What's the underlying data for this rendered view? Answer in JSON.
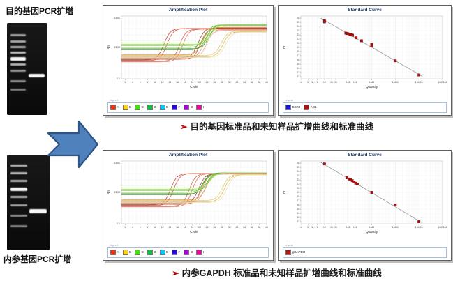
{
  "page": {
    "background": "#ffffff"
  },
  "gels": {
    "top": {
      "label": "目的基因PCR扩增",
      "bands": [
        {
          "t": 12,
          "o": 0.7
        },
        {
          "t": 19,
          "o": 0.75
        },
        {
          "t": 25,
          "o": 0.8
        },
        {
          "t": 31,
          "o": 0.85
        },
        {
          "t": 37,
          "o": 1.0,
          "thick": true
        },
        {
          "t": 44,
          "o": 0.8
        },
        {
          "t": 51,
          "o": 0.65
        },
        {
          "t": 62,
          "o": 0.6
        },
        {
          "t": 71,
          "o": 0.55
        }
      ],
      "sample_band": {
        "t": 55,
        "thick": false
      }
    },
    "bottom": {
      "label": "内参基因PCR扩增",
      "bands": [
        {
          "t": 10,
          "o": 0.8
        },
        {
          "t": 18,
          "o": 0.8
        },
        {
          "t": 26,
          "o": 0.8
        },
        {
          "t": 34,
          "o": 1.0,
          "thick": true
        },
        {
          "t": 43,
          "o": 0.8
        },
        {
          "t": 52,
          "o": 0.7
        },
        {
          "t": 63,
          "o": 0.6
        },
        {
          "t": 74,
          "o": 0.55
        }
      ],
      "sample_band": {
        "t": 57,
        "thick": true
      }
    }
  },
  "arrow": {
    "fill": "#4f81bd",
    "stroke": "#2d5686",
    "direction": "right"
  },
  "captions": {
    "top": {
      "bullet": "➢",
      "bullet_color": "#c00000",
      "text": "目的基因标准品和未知样品扩增曲线和标准曲线"
    },
    "bottom": {
      "bullet": "➢",
      "bullet_color": "#c00000",
      "text": "内参GAPDH 标准品和未知样品扩增曲线和标准曲线"
    }
  },
  "chart_data": [
    {
      "type": "line",
      "title": "Amplification Plot",
      "xlabel": "Cycle",
      "ylabel": "Rn",
      "yscale": "log",
      "xlim": [
        1,
        40
      ],
      "x_ticks": [
        2,
        4,
        6,
        8,
        10,
        12,
        14,
        16,
        18,
        20,
        22,
        24,
        26,
        28,
        30,
        32,
        34,
        36,
        38,
        40
      ],
      "y_ticks": [
        "1E01",
        "1E00",
        "0.1"
      ],
      "grid": true,
      "legend_title": "Legend",
      "legend": [
        {
          "label": "A",
          "color": "#ff2a00"
        },
        {
          "label": "B",
          "color": "#ffd500"
        },
        {
          "label": "C",
          "color": "#3ae800"
        },
        {
          "label": "D",
          "color": "#00c43a"
        },
        {
          "label": "E",
          "color": "#00c8ff"
        },
        {
          "label": "F",
          "color": "#2a00ff"
        },
        {
          "label": "G",
          "color": "#a800e0"
        },
        {
          "label": "H",
          "color": "#ff00a0"
        }
      ],
      "series": [
        {
          "color": "#b03a2e",
          "ct": 12.4,
          "base": 0.3,
          "plateau": 0.8
        },
        {
          "color": "#cd4a3a",
          "ct": 13.2,
          "base": 0.29,
          "plateau": 0.8
        },
        {
          "color": "#d45b43",
          "ct": 16.6,
          "base": 0.28,
          "plateau": 0.79
        },
        {
          "color": "#e06a50",
          "ct": 17.4,
          "base": 0.27,
          "plateau": 0.79
        },
        {
          "color": "#8e3b2a",
          "ct": 21.6,
          "base": 0.33,
          "plateau": 0.81
        },
        {
          "color": "#c0502f",
          "ct": 22.2,
          "base": 0.31,
          "plateau": 0.8
        },
        {
          "color": "#d98a2b",
          "ct": 22.7,
          "base": 0.38,
          "plateau": 0.82
        },
        {
          "color": "#e2907d",
          "ct": 23.2,
          "base": 0.34,
          "plateau": 0.78
        },
        {
          "color": "#eaa592",
          "ct": 23.8,
          "base": 0.33,
          "plateau": 0.77
        },
        {
          "color": "#35982a",
          "ct": 23.8,
          "base": 0.46,
          "plateau": 0.85
        },
        {
          "color": "#5fbf2a",
          "ct": 23.5,
          "base": 0.5,
          "plateau": 0.86
        },
        {
          "color": "#49a82d",
          "ct": 24.5,
          "base": 0.48,
          "plateau": 0.85
        },
        {
          "color": "#7ccf3a",
          "ct": 24.1,
          "base": 0.53,
          "plateau": 0.86
        },
        {
          "color": "#8fd84e",
          "ct": 25.0,
          "base": 0.55,
          "plateau": 0.86
        },
        {
          "color": "#a5e06b",
          "ct": 24.7,
          "base": 0.57,
          "plateau": 0.85
        },
        {
          "color": "#e4c96d",
          "ct": 27.8,
          "base": 0.37,
          "plateau": 0.76
        },
        {
          "color": "#d9b84a",
          "ct": 28.3,
          "base": 0.35,
          "plateau": 0.75
        },
        {
          "color": "#efdfa2",
          "ct": 28.9,
          "base": 0.34,
          "plateau": 0.74
        }
      ]
    },
    {
      "type": "scatter",
      "title": "Standard Curve",
      "xlabel": "Quantity",
      "ylabel": "Ct",
      "xscale": "log",
      "xlim": [
        1,
        1000000
      ],
      "ylim": [
        11.5,
        26.5
      ],
      "x_ticks": [
        1,
        2,
        3,
        4,
        5,
        10,
        20,
        30,
        100,
        200,
        1000,
        10000,
        100000,
        1000000
      ],
      "y_ticks": [
        12,
        13,
        14,
        15,
        16,
        17,
        18,
        19,
        20,
        21,
        22,
        23,
        24,
        25,
        26
      ],
      "grid": true,
      "marker_color": "#b01010",
      "fit_line": {
        "x1": 7,
        "y1": 26.0,
        "x2": 140000,
        "y2": 12.1
      },
      "points": [
        [
          10,
          25.5
        ],
        [
          10,
          25.1
        ],
        [
          80,
          22.4
        ],
        [
          95,
          22.3
        ],
        [
          110,
          22.2
        ],
        [
          125,
          22.1
        ],
        [
          140,
          22.0
        ],
        [
          155,
          21.9
        ],
        [
          220,
          21.3
        ],
        [
          370,
          20.6
        ],
        [
          1000,
          19.8
        ],
        [
          1000,
          19.4
        ],
        [
          10000,
          15.8
        ],
        [
          100000,
          12.4
        ]
      ],
      "legend_title": "Legend",
      "legend": [
        {
          "label": "ESR2",
          "color": "#1515e0"
        },
        {
          "label": "AG1",
          "color": "#b01010"
        }
      ]
    },
    {
      "type": "line",
      "title": "Amplification Plot",
      "xlabel": "Cycle",
      "ylabel": "Rn",
      "yscale": "log",
      "xlim": [
        1,
        40
      ],
      "x_ticks": [
        2,
        4,
        6,
        8,
        10,
        12,
        14,
        16,
        18,
        20,
        22,
        24,
        26,
        28,
        30,
        32,
        34,
        36,
        38,
        40
      ],
      "y_ticks": [
        "1E01",
        "1E00",
        "0.1"
      ],
      "grid": true,
      "legend_title": "Legend",
      "legend": [
        {
          "label": "A",
          "color": "#ff2a00"
        },
        {
          "label": "B",
          "color": "#ffd500"
        },
        {
          "label": "C",
          "color": "#3ae800"
        },
        {
          "label": "D",
          "color": "#00c43a"
        },
        {
          "label": "E",
          "color": "#00c8ff"
        },
        {
          "label": "F",
          "color": "#2a00ff"
        },
        {
          "label": "G",
          "color": "#a800e0"
        },
        {
          "label": "H",
          "color": "#ff00a0"
        }
      ],
      "series": [
        {
          "color": "#b03a2e",
          "ct": 14.2,
          "base": 0.3,
          "plateau": 0.8
        },
        {
          "color": "#cd4a3a",
          "ct": 15.0,
          "base": 0.29,
          "plateau": 0.8
        },
        {
          "color": "#d45b43",
          "ct": 19.2,
          "base": 0.28,
          "plateau": 0.8
        },
        {
          "color": "#e06a50",
          "ct": 20.0,
          "base": 0.27,
          "plateau": 0.8
        },
        {
          "color": "#8e3b2a",
          "ct": 21.8,
          "base": 0.33,
          "plateau": 0.8
        },
        {
          "color": "#c0502f",
          "ct": 22.4,
          "base": 0.31,
          "plateau": 0.8
        },
        {
          "color": "#d98a2b",
          "ct": 23.8,
          "base": 0.38,
          "plateau": 0.81
        },
        {
          "color": "#e2907d",
          "ct": 22.8,
          "base": 0.34,
          "plateau": 0.8
        },
        {
          "color": "#eaa592",
          "ct": 23.4,
          "base": 0.33,
          "plateau": 0.79
        },
        {
          "color": "#35982a",
          "ct": 22.8,
          "base": 0.46,
          "plateau": 0.81
        },
        {
          "color": "#5fbf2a",
          "ct": 23.2,
          "base": 0.5,
          "plateau": 0.81
        },
        {
          "color": "#49a82d",
          "ct": 23.8,
          "base": 0.48,
          "plateau": 0.81
        },
        {
          "color": "#7ccf3a",
          "ct": 24.2,
          "base": 0.53,
          "plateau": 0.81
        },
        {
          "color": "#8fd84e",
          "ct": 24.6,
          "base": 0.55,
          "plateau": 0.81
        },
        {
          "color": "#a5e06b",
          "ct": 24.9,
          "base": 0.57,
          "plateau": 0.81
        },
        {
          "color": "#e4c96d",
          "ct": 28.2,
          "base": 0.37,
          "plateau": 0.79
        },
        {
          "color": "#d9b84a",
          "ct": 28.7,
          "base": 0.35,
          "plateau": 0.78
        },
        {
          "color": "#efdfa2",
          "ct": 29.3,
          "base": 0.34,
          "plateau": 0.78
        }
      ]
    },
    {
      "type": "scatter",
      "title": "Standard Curve",
      "xlabel": "Quantity",
      "ylabel": "Ct",
      "xscale": "log",
      "xlim": [
        1,
        1000000
      ],
      "ylim": [
        11.5,
        26.5
      ],
      "x_ticks": [
        1,
        2,
        3,
        4,
        5,
        10,
        20,
        30,
        100,
        200,
        1000,
        10000,
        100000,
        1000000
      ],
      "y_ticks": [
        12,
        13,
        14,
        15,
        16,
        17,
        18,
        19,
        20,
        21,
        22,
        23,
        24,
        25,
        26
      ],
      "grid": true,
      "marker_color": "#b01010",
      "fit_line": {
        "x1": 7,
        "y1": 26.2,
        "x2": 140000,
        "y2": 11.7
      },
      "points": [
        [
          10,
          25.8
        ],
        [
          90,
          22.5
        ],
        [
          110,
          22.2
        ],
        [
          130,
          22.0
        ],
        [
          150,
          21.8
        ],
        [
          180,
          21.5
        ],
        [
          210,
          21.2
        ],
        [
          250,
          21.0
        ],
        [
          1000,
          19.0
        ],
        [
          10000,
          16.0
        ],
        [
          100000,
          12.0
        ]
      ],
      "legend_title": "Legend",
      "legend": [
        {
          "label": "gGAPDH",
          "color": "#b01010"
        }
      ]
    }
  ]
}
